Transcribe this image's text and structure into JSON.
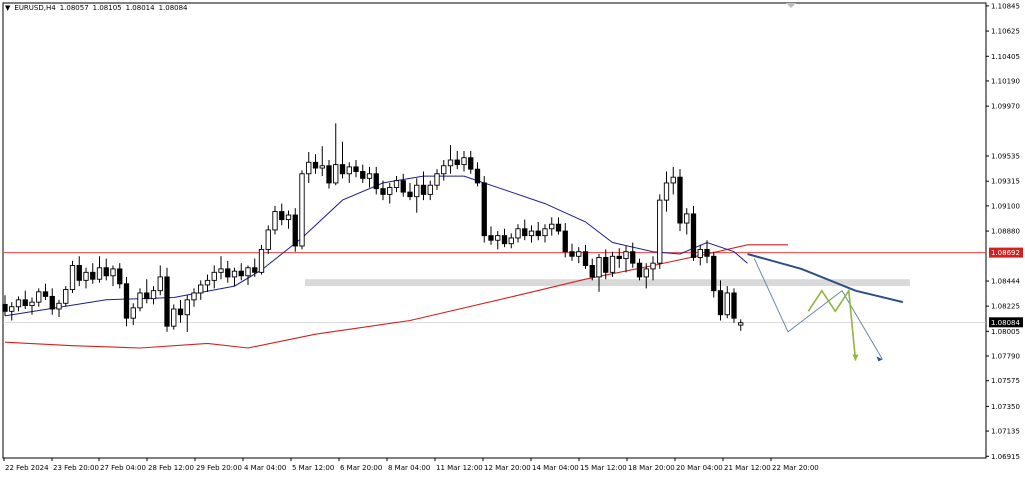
{
  "header": {
    "triangle": "▼",
    "symbol": "EURUSD,H4",
    "open": "1.08057",
    "high": "1.08105",
    "low": "1.08014",
    "close": "1.08084"
  },
  "colors": {
    "background": "#ffffff",
    "candle": "#000000",
    "ma_fast": "#1c1f8f",
    "ma_slow": "#d42020",
    "level": "#f04040",
    "zone": "#d9d9d9",
    "projection_blue": "#2c4f86",
    "projection_thin": "#6b86a8",
    "projection_green": "#8cb63c",
    "price_tag_bg": "#000000"
  },
  "chart_data": {
    "type": "candlestick",
    "symbol": "EURUSD",
    "timeframe": "H4",
    "ylim": [
      1.069,
      1.1087
    ],
    "yticks": [
      "1.10845",
      "1.10625",
      "1.10405",
      "1.10190",
      "1.09970",
      "1.09535",
      "1.09315",
      "1.09100",
      "1.08880",
      "1.08444",
      "1.08225",
      "1.08005",
      "1.07790",
      "1.07575",
      "1.07350",
      "1.07135",
      "1.06915"
    ],
    "xticks": [
      "22 Feb 2024",
      "23 Feb 20:00",
      "27 Feb 04:00",
      "28 Feb 12:00",
      "29 Feb 20:00",
      "4 Mar 04:00",
      "5 Mar 12:00",
      "6 Mar 20:00",
      "8 Mar 04:00",
      "11 Mar 12:00",
      "12 Mar 20:00",
      "14 Mar 04:00",
      "15 Mar 12:00",
      "18 Mar 20:00",
      "20 Mar 04:00",
      "21 Mar 12:00",
      "22 Mar 20:00"
    ],
    "price_labels": [
      {
        "text": "1.08692",
        "value": 1.08692,
        "color": "#d42020"
      },
      {
        "text": "1.08084",
        "value": 1.08084,
        "color": "#000000"
      }
    ],
    "horizontal_level": 1.08692,
    "zone": [
      1.084,
      1.0846
    ],
    "candles": [
      [
        1.0824,
        1.0832,
        1.0814,
        1.0818
      ],
      [
        1.0818,
        1.0826,
        1.081,
        1.0822
      ],
      [
        1.0822,
        1.0831,
        1.0818,
        1.0828
      ],
      [
        1.0828,
        1.0836,
        1.082,
        1.0823
      ],
      [
        1.0823,
        1.083,
        1.0815,
        1.0826
      ],
      [
        1.0826,
        1.0838,
        1.0822,
        1.0835
      ],
      [
        1.0835,
        1.0842,
        1.0828,
        1.0831
      ],
      [
        1.0831,
        1.0838,
        1.0815,
        1.082
      ],
      [
        1.082,
        1.0828,
        1.0813,
        1.0825
      ],
      [
        1.0825,
        1.084,
        1.0822,
        1.0837
      ],
      [
        1.0837,
        1.0862,
        1.0834,
        1.0858
      ],
      [
        1.0858,
        1.0866,
        1.084,
        1.0845
      ],
      [
        1.0845,
        1.0856,
        1.0838,
        1.0852
      ],
      [
        1.0852,
        1.086,
        1.0842,
        1.0846
      ],
      [
        1.0846,
        1.0866,
        1.0843,
        1.0856
      ],
      [
        1.0856,
        1.0864,
        1.0845,
        1.0849
      ],
      [
        1.0849,
        1.0858,
        1.084,
        1.0855
      ],
      [
        1.0855,
        1.086,
        1.0838,
        1.0842
      ],
      [
        1.0842,
        1.0848,
        1.0805,
        1.0812
      ],
      [
        1.0812,
        1.0825,
        1.0806,
        1.0821
      ],
      [
        1.0821,
        1.0838,
        1.0818,
        1.0834
      ],
      [
        1.0834,
        1.0846,
        1.0825,
        1.0829
      ],
      [
        1.0829,
        1.084,
        1.0824,
        1.0836
      ],
      [
        1.0836,
        1.0858,
        1.0832,
        1.0848
      ],
      [
        1.0848,
        1.0856,
        1.08,
        1.0805
      ],
      [
        1.0805,
        1.0824,
        1.0802,
        1.082
      ],
      [
        1.082,
        1.0828,
        1.0808,
        1.0815
      ],
      [
        1.0815,
        1.0832,
        1.08,
        1.0828
      ],
      [
        1.0828,
        1.0838,
        1.0822,
        1.0834
      ],
      [
        1.0834,
        1.0845,
        1.0828,
        1.0841
      ],
      [
        1.0841,
        1.085,
        1.0835,
        1.0845
      ],
      [
        1.0845,
        1.0858,
        1.0838,
        1.0852
      ],
      [
        1.0852,
        1.0866,
        1.0846,
        1.0855
      ],
      [
        1.0855,
        1.0862,
        1.0843,
        1.0848
      ],
      [
        1.0848,
        1.0856,
        1.084,
        1.0853
      ],
      [
        1.0853,
        1.086,
        1.0845,
        1.0849
      ],
      [
        1.0849,
        1.0858,
        1.0841,
        1.0856
      ],
      [
        1.0856,
        1.0864,
        1.0848,
        1.0852
      ],
      [
        1.0852,
        1.0876,
        1.085,
        1.0872
      ],
      [
        1.0872,
        1.0893,
        1.0868,
        1.0889
      ],
      [
        1.0889,
        1.091,
        1.0885,
        1.0905
      ],
      [
        1.0905,
        1.0912,
        1.0893,
        1.0898
      ],
      [
        1.0898,
        1.0906,
        1.089,
        1.0902
      ],
      [
        1.0902,
        1.0908,
        1.087,
        1.0875
      ],
      [
        1.0875,
        1.0941,
        1.0872,
        1.0938
      ],
      [
        1.0938,
        1.0957,
        1.093,
        1.0948
      ],
      [
        1.0948,
        1.0955,
        1.0938,
        1.0943
      ],
      [
        1.0943,
        1.0962,
        1.0936,
        1.0945
      ],
      [
        1.0945,
        1.095,
        1.0925,
        1.093
      ],
      [
        1.093,
        1.0982,
        1.0928,
        1.0946
      ],
      [
        1.0946,
        1.0966,
        1.0934,
        1.0938
      ],
      [
        1.0938,
        1.0948,
        1.093,
        1.0944
      ],
      [
        1.0944,
        1.095,
        1.0935,
        1.094
      ],
      [
        1.094,
        1.0946,
        1.093,
        1.0934
      ],
      [
        1.0934,
        1.0944,
        1.0926,
        1.0938
      ],
      [
        1.0938,
        1.0944,
        1.092,
        1.0925
      ],
      [
        1.0925,
        1.0932,
        1.0915,
        1.092
      ],
      [
        1.092,
        1.093,
        1.0912,
        1.0926
      ],
      [
        1.0926,
        1.0936,
        1.0922,
        1.0932
      ],
      [
        1.0932,
        1.0938,
        1.0918,
        1.0922
      ],
      [
        1.0922,
        1.093,
        1.0915,
        1.0918
      ],
      [
        1.0918,
        1.0934,
        1.0904,
        1.0928
      ],
      [
        1.0928,
        1.094,
        1.0915,
        1.092
      ],
      [
        1.092,
        1.0932,
        1.0915,
        1.0928
      ],
      [
        1.0928,
        1.0942,
        1.0924,
        1.0938
      ],
      [
        1.0938,
        1.095,
        1.0932,
        1.0945
      ],
      [
        1.0945,
        1.0963,
        1.0938,
        1.095
      ],
      [
        1.095,
        1.0958,
        1.0942,
        1.0946
      ],
      [
        1.0946,
        1.0958,
        1.094,
        1.0952
      ],
      [
        1.0952,
        1.0958,
        1.0938,
        1.0942
      ],
      [
        1.0942,
        1.0948,
        1.0927,
        1.093
      ],
      [
        1.093,
        1.0936,
        1.0878,
        1.0884
      ],
      [
        1.0884,
        1.0892,
        1.0876,
        1.088
      ],
      [
        1.088,
        1.0888,
        1.0872,
        1.0884
      ],
      [
        1.0884,
        1.089,
        1.0874,
        1.0877
      ],
      [
        1.0877,
        1.0886,
        1.0873,
        1.0882
      ],
      [
        1.0882,
        1.0894,
        1.0878,
        1.089
      ],
      [
        1.089,
        1.0898,
        1.088,
        1.0884
      ],
      [
        1.0884,
        1.0893,
        1.0878,
        1.0888
      ],
      [
        1.0888,
        1.0896,
        1.088,
        1.0884
      ],
      [
        1.0884,
        1.0894,
        1.0878,
        1.089
      ],
      [
        1.089,
        1.09,
        1.0884,
        1.0894
      ],
      [
        1.0894,
        1.09,
        1.0885,
        1.0888
      ],
      [
        1.0888,
        1.0895,
        1.0865,
        1.087
      ],
      [
        1.087,
        1.0877,
        1.0862,
        1.0866
      ],
      [
        1.0866,
        1.0874,
        1.086,
        1.087
      ],
      [
        1.087,
        1.0876,
        1.0855,
        1.0858
      ],
      [
        1.0858,
        1.0864,
        1.0845,
        1.0848
      ],
      [
        1.0848,
        1.0868,
        1.0835,
        1.0865
      ],
      [
        1.0865,
        1.0872,
        1.0846,
        1.0852
      ],
      [
        1.0852,
        1.087,
        1.0848,
        1.0866
      ],
      [
        1.0866,
        1.0873,
        1.0856,
        1.0864
      ],
      [
        1.0864,
        1.0875,
        1.0852,
        1.087
      ],
      [
        1.087,
        1.0878,
        1.0856,
        1.086
      ],
      [
        1.086,
        1.0864,
        1.0845,
        1.0848
      ],
      [
        1.0848,
        1.086,
        1.0838,
        1.0855
      ],
      [
        1.0855,
        1.0866,
        1.0845,
        1.086
      ],
      [
        1.086,
        1.092,
        1.0855,
        1.0915
      ],
      [
        1.0915,
        1.094,
        1.0905,
        1.093
      ],
      [
        1.093,
        1.0944,
        1.092,
        1.0935
      ],
      [
        1.0935,
        1.0942,
        1.0888,
        1.0895
      ],
      [
        1.0895,
        1.0908,
        1.0885,
        1.0903
      ],
      [
        1.0903,
        1.091,
        1.0862,
        1.0865
      ],
      [
        1.0865,
        1.0876,
        1.0858,
        1.0872
      ],
      [
        1.0872,
        1.088,
        1.086,
        1.0866
      ],
      [
        1.0866,
        1.087,
        1.083,
        1.0836
      ],
      [
        1.0836,
        1.0845,
        1.081,
        1.0815
      ],
      [
        1.0815,
        1.084,
        1.0812,
        1.0834
      ],
      [
        1.0834,
        1.0838,
        1.0808,
        1.0812
      ],
      [
        1.0806,
        1.0811,
        1.0801,
        1.0808
      ]
    ],
    "ma_fast": [
      [
        0,
        1.0814
      ],
      [
        15,
        1.0828
      ],
      [
        25,
        1.083
      ],
      [
        34,
        1.084
      ],
      [
        38,
        1.0854
      ],
      [
        44,
        1.0882
      ],
      [
        50,
        1.0915
      ],
      [
        56,
        1.093
      ],
      [
        62,
        1.0936
      ],
      [
        68,
        1.0936
      ],
      [
        74,
        1.0924
      ],
      [
        80,
        1.0912
      ],
      [
        86,
        1.0896
      ],
      [
        90,
        1.0878
      ],
      [
        96,
        1.087
      ],
      [
        100,
        1.0868
      ],
      [
        104,
        1.0878
      ],
      [
        108,
        1.087
      ],
      [
        110,
        1.086
      ]
    ],
    "ma_slow": [
      [
        0,
        1.0791
      ],
      [
        10,
        1.0788
      ],
      [
        20,
        1.0786
      ],
      [
        30,
        1.079
      ],
      [
        36,
        1.0786
      ],
      [
        46,
        1.0798
      ],
      [
        60,
        1.081
      ],
      [
        76,
        1.0832
      ],
      [
        86,
        1.0846
      ],
      [
        96,
        1.0858
      ],
      [
        104,
        1.0868
      ],
      [
        110,
        1.0876
      ],
      [
        116,
        1.0876
      ]
    ],
    "projection_main": [
      [
        110,
        1.0868
      ],
      [
        118,
        1.0855
      ],
      [
        126,
        1.0836
      ],
      [
        133,
        1.0826
      ]
    ],
    "projection_thin": [
      [
        111,
        1.0864
      ],
      [
        116,
        1.08
      ],
      [
        124,
        1.0836
      ],
      [
        130,
        1.0776
      ]
    ],
    "projection_green": [
      [
        119,
        1.0818
      ],
      [
        121,
        1.0836
      ],
      [
        123,
        1.0818
      ],
      [
        125,
        1.0836
      ],
      [
        126,
        1.0775
      ]
    ]
  }
}
